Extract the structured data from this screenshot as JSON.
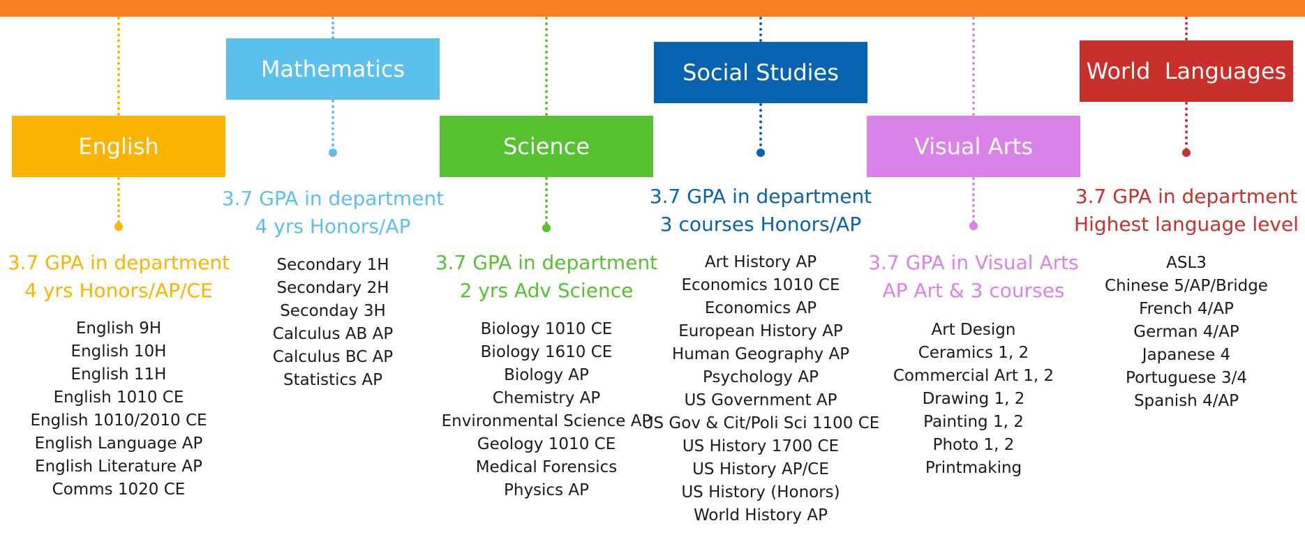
{
  "colors": {
    "top_bar": "#f97f22"
  },
  "departments": [
    {
      "name": "English",
      "color": "#fdb400",
      "requirements": [
        "3.7 GPA in department",
        "4 yrs Honors/AP/CE"
      ],
      "courses": [
        "English 9H",
        "English 10H",
        "English 11H",
        "English 1010 CE",
        "English 1010/2010 CE",
        "English Language AP",
        "English Literature AP",
        "Comms 1020 CE"
      ]
    },
    {
      "name": "Mathematics",
      "color": "#5bc0eb",
      "requirements": [
        "3.7 GPA in department",
        "4 yrs Honors/AP"
      ],
      "courses": [
        "Secondary 1H",
        "Secondary 2H",
        "Seconday 3H",
        "Calculus AB AP",
        "Calculus BC AP",
        "Statistics AP"
      ]
    },
    {
      "name": "Science",
      "color": "#58c12f",
      "requirements": [
        "3.7 GPA in department",
        "2 yrs Adv Science"
      ],
      "courses": [
        "Biology 1010 CE",
        "Biology 1610 CE",
        "Biology AP",
        "Chemistry AP",
        "Environmental Science AP",
        "Geology 1010 CE",
        "Medical Forensics",
        "Physics AP"
      ]
    },
    {
      "name": "Social Studies",
      "color": "#0763b0",
      "requirements": [
        "3.7 GPA in department",
        "3 courses Honors/AP"
      ],
      "courses": [
        "Art History AP",
        "Economics 1010 CE",
        "Economics AP",
        "European History AP",
        "Human Geography AP",
        "Psychology AP",
        "US Government AP",
        "US Gov & Cit/Poli Sci 1100 CE",
        "US History 1700 CE",
        "US History AP/CE",
        "US History (Honors)",
        "World History AP"
      ]
    },
    {
      "name": "Visual Arts",
      "color": "#d982e8",
      "requirements": [
        "3.7 GPA in Visual Arts",
        "AP Art & 3 courses"
      ],
      "courses": [
        "Art Design",
        "Ceramics 1, 2",
        "Commercial Art 1, 2",
        "Drawing 1, 2",
        "Painting 1, 2",
        "Photo 1, 2",
        "Printmaking"
      ]
    },
    {
      "name": "World  Languages",
      "color": "#c9302c",
      "requirements": [
        "3.7 GPA in department",
        "Highest language level"
      ],
      "courses": [
        "ASL3",
        "Chinese 5/AP/Bridge",
        "French 4/AP",
        "German 4/AP",
        "Japanese 4",
        "Portuguese 3/4",
        "Spanish 4/AP"
      ]
    }
  ]
}
